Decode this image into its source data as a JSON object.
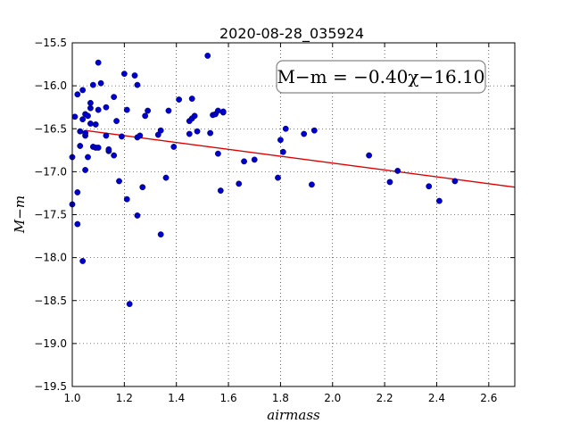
{
  "chart_data": {
    "type": "scatter",
    "title": "2020-08-28_035924",
    "xlabel": "airmass",
    "ylabel": "M−m",
    "xlim": [
      1.0,
      2.7
    ],
    "ylim": [
      -19.5,
      -15.5
    ],
    "y_inverted_sign_axis": true,
    "grid": true,
    "xticks": [
      "1.0",
      "1.2",
      "1.4",
      "1.6",
      "1.8",
      "2.0",
      "2.2",
      "2.4",
      "2.6"
    ],
    "yticks": [
      "−15.5",
      "−16.0",
      "−16.5",
      "−17.0",
      "−17.5",
      "−18.0",
      "−18.5",
      "−19.0",
      "−19.5"
    ],
    "annotation": "M−m = −0.40χ−16.10",
    "fit": {
      "slope": -0.4,
      "intercept": -16.1,
      "x_range": [
        1.05,
        2.7
      ],
      "color": "#dd0000"
    },
    "marker_color": "#0000cc",
    "points": [
      [
        1.0,
        -16.83
      ],
      [
        1.0,
        -17.38
      ],
      [
        1.01,
        -16.36
      ],
      [
        1.02,
        -17.24
      ],
      [
        1.02,
        -17.61
      ],
      [
        1.02,
        -16.1
      ],
      [
        1.03,
        -16.7
      ],
      [
        1.03,
        -16.53
      ],
      [
        1.04,
        -16.39
      ],
      [
        1.04,
        -18.04
      ],
      [
        1.04,
        -16.05
      ],
      [
        1.05,
        -16.58
      ],
      [
        1.05,
        -16.33
      ],
      [
        1.05,
        -16.98
      ],
      [
        1.05,
        -16.55
      ],
      [
        1.06,
        -16.83
      ],
      [
        1.06,
        -16.35
      ],
      [
        1.07,
        -16.44
      ],
      [
        1.07,
        -16.26
      ],
      [
        1.07,
        -16.2
      ],
      [
        1.08,
        -15.99
      ],
      [
        1.08,
        -16.71
      ],
      [
        1.09,
        -16.45
      ],
      [
        1.09,
        -16.72
      ],
      [
        1.1,
        -16.72
      ],
      [
        1.1,
        -15.73
      ],
      [
        1.1,
        -16.28
      ],
      [
        1.11,
        -15.97
      ],
      [
        1.13,
        -16.58
      ],
      [
        1.13,
        -16.25
      ],
      [
        1.14,
        -16.76
      ],
      [
        1.14,
        -16.74
      ],
      [
        1.16,
        -16.13
      ],
      [
        1.16,
        -16.81
      ],
      [
        1.17,
        -16.41
      ],
      [
        1.18,
        -17.11
      ],
      [
        1.19,
        -16.59
      ],
      [
        1.2,
        -15.86
      ],
      [
        1.21,
        -16.28
      ],
      [
        1.21,
        -17.32
      ],
      [
        1.22,
        -18.54
      ],
      [
        1.24,
        -15.88
      ],
      [
        1.25,
        -15.99
      ],
      [
        1.25,
        -16.6
      ],
      [
        1.25,
        -17.51
      ],
      [
        1.26,
        -16.58
      ],
      [
        1.27,
        -17.18
      ],
      [
        1.28,
        -16.35
      ],
      [
        1.29,
        -16.29
      ],
      [
        1.33,
        -16.57
      ],
      [
        1.34,
        -16.52
      ],
      [
        1.34,
        -17.73
      ],
      [
        1.36,
        -17.07
      ],
      [
        1.37,
        -16.29
      ],
      [
        1.39,
        -16.71
      ],
      [
        1.41,
        -16.16
      ],
      [
        1.45,
        -16.56
      ],
      [
        1.45,
        -16.41
      ],
      [
        1.46,
        -16.38
      ],
      [
        1.46,
        -16.15
      ],
      [
        1.47,
        -16.35
      ],
      [
        1.48,
        -16.53
      ],
      [
        1.52,
        -15.65
      ],
      [
        1.53,
        -16.55
      ],
      [
        1.54,
        -16.34
      ],
      [
        1.55,
        -16.33
      ],
      [
        1.56,
        -16.29
      ],
      [
        1.56,
        -16.79
      ],
      [
        1.57,
        -17.22
      ],
      [
        1.58,
        -16.31
      ],
      [
        1.58,
        -16.3
      ],
      [
        1.64,
        -17.14
      ],
      [
        1.66,
        -16.88
      ],
      [
        1.7,
        -16.86
      ],
      [
        1.79,
        -17.07
      ],
      [
        1.8,
        -16.63
      ],
      [
        1.81,
        -16.77
      ],
      [
        1.82,
        -16.5
      ],
      [
        1.89,
        -16.56
      ],
      [
        1.92,
        -17.15
      ],
      [
        1.93,
        -16.52
      ],
      [
        2.14,
        -16.81
      ],
      [
        2.22,
        -17.12
      ],
      [
        2.25,
        -16.99
      ],
      [
        2.37,
        -17.17
      ],
      [
        2.41,
        -17.34
      ],
      [
        2.47,
        -17.11
      ]
    ]
  }
}
